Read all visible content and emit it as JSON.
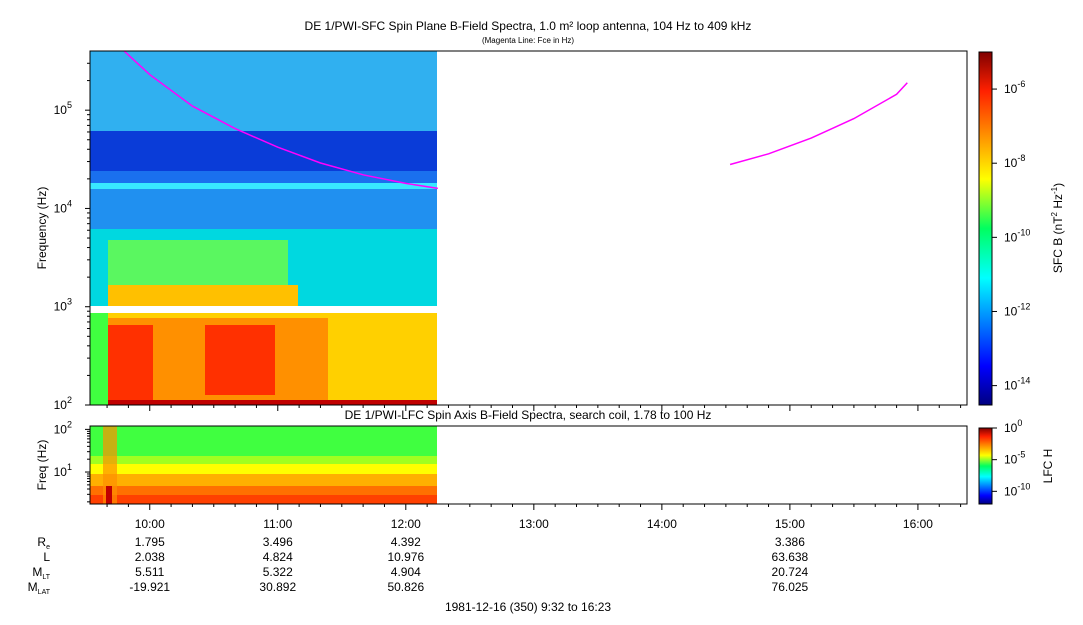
{
  "chart_data": [
    {
      "type": "heatmap",
      "title": "DE 1/PWI-SFC  Spin Plane B-Field Spectra, 1.0 m² loop antenna, 104 Hz to 409 kHz",
      "subtitle": "(Magenta Line: Fce in Hz)",
      "ylabel": "Frequency (Hz)",
      "yscale": "log",
      "ylim": [
        100,
        400000
      ],
      "yticks": [
        {
          "base": "10",
          "exp": "2"
        },
        {
          "base": "10",
          "exp": "3"
        },
        {
          "base": "10",
          "exp": "4"
        },
        {
          "base": "10",
          "exp": "5"
        }
      ],
      "data_time_range": [
        "09:32",
        "12:15"
      ],
      "colorbar": {
        "label_main": "SFC B (nT",
        "label_sup1": "2",
        "label_mid": " Hz",
        "label_sup2": "-1",
        "label_end": ")",
        "scale": "log",
        "range": [
          3e-15,
          1e-05
        ],
        "ticks": [
          {
            "base": "10",
            "exp": "-6"
          },
          {
            "base": "10",
            "exp": "-8"
          },
          {
            "base": "10",
            "exp": "-10"
          },
          {
            "base": "10",
            "exp": "-12"
          },
          {
            "base": "10",
            "exp": "-14"
          }
        ]
      },
      "fce_line": {
        "color": "#ff00ff",
        "segments": [
          {
            "x": [
              "09:48",
              "10:00",
              "10:20",
              "10:40",
              "11:00",
              "11:20",
              "11:40",
              "12:00",
              "12:15"
            ],
            "y": [
              400000,
              230000,
              110000,
              65000,
              42000,
              29000,
              22000,
              18000,
              16000
            ]
          },
          {
            "x": [
              "14:32",
              "14:50",
              "15:10",
              "15:30",
              "15:50",
              "15:55"
            ],
            "y": [
              28000,
              36000,
              52000,
              82000,
              145000,
              190000
            ]
          }
        ]
      }
    },
    {
      "type": "heatmap",
      "title": "DE 1/PWI-LFC  Spin Axis B-Field Spectra, search coil, 1.78 to 100 Hz",
      "ylabel": "Freq (Hz)",
      "yscale": "log",
      "ylim": [
        1.78,
        120
      ],
      "yticks": [
        {
          "base": "10",
          "exp": "1"
        },
        {
          "base": "10",
          "exp": "2"
        }
      ],
      "data_time_range": [
        "09:32",
        "12:15"
      ],
      "colorbar": {
        "label": "LFC H",
        "scale": "log",
        "range": [
          1e-12,
          1
        ],
        "ticks": [
          {
            "base": "10",
            "exp": "0"
          },
          {
            "base": "10",
            "exp": "-5"
          },
          {
            "base": "10",
            "exp": "-10"
          }
        ]
      }
    }
  ],
  "time_axis": {
    "start": "09:32",
    "end": "16:23",
    "ticks": [
      "10:00",
      "11:00",
      "12:00",
      "13:00",
      "14:00",
      "15:00",
      "16:00"
    ]
  },
  "ephemeris": {
    "rows": [
      {
        "label": "R",
        "sub": "e",
        "values": [
          "1.795",
          "3.496",
          "4.392",
          "",
          "",
          "3.386",
          ""
        ]
      },
      {
        "label": "L",
        "sub": "",
        "values": [
          "2.038",
          "4.824",
          "10.976",
          "",
          "",
          "63.638",
          ""
        ]
      },
      {
        "label": "M",
        "sub": "LT",
        "values": [
          "5.511",
          "5.322",
          "4.904",
          "",
          "",
          "20.724",
          ""
        ]
      },
      {
        "label": "M",
        "sub": "LAT",
        "values": [
          "-19.921",
          "30.892",
          "50.826",
          "",
          "",
          "76.025",
          ""
        ]
      }
    ]
  },
  "footer": "1981-12-16 (350) 9:32 to 16:23"
}
